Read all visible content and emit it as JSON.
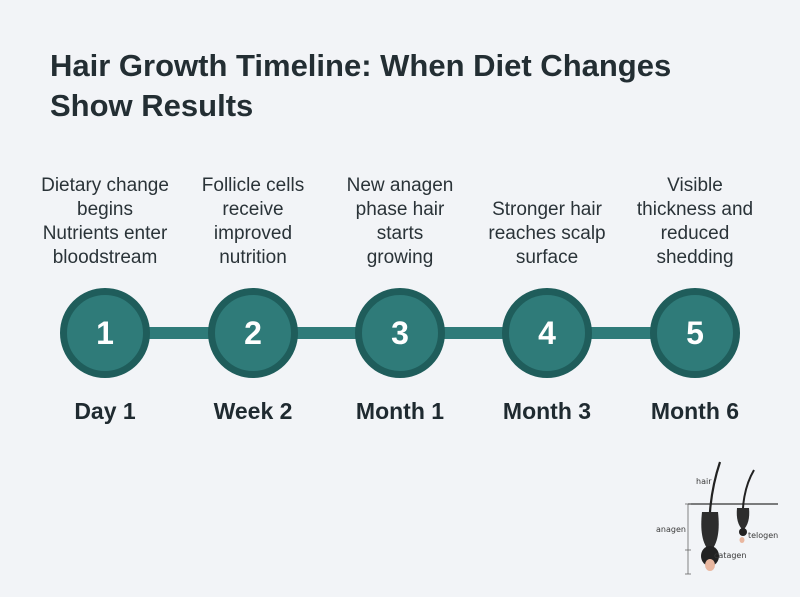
{
  "title": "Hair Growth Timeline: When Diet Changes Show Results",
  "steps": [
    {
      "number": "1",
      "label": "Day 1",
      "description": [
        "Dietary change",
        "begins",
        "Nutrients enter",
        "bloodstream"
      ]
    },
    {
      "number": "2",
      "label": "Week 2",
      "description": [
        "Follicle cells",
        "receive",
        "improved",
        "nutrition"
      ]
    },
    {
      "number": "3",
      "label": "Month 1",
      "description": [
        "New anagen",
        "phase hair",
        "starts",
        "growing"
      ]
    },
    {
      "number": "4",
      "label": "Month 3",
      "description": [
        "Stronger hair",
        "reaches scalp",
        "surface"
      ]
    },
    {
      "number": "5",
      "label": "Month 6",
      "description": [
        "Visible",
        "thickness and",
        "reduced",
        "shedding"
      ]
    }
  ],
  "diagram_labels": {
    "hair": "hair",
    "anagen": "anagen",
    "telogen": "telogen",
    "catagen": "catagen"
  },
  "colors": {
    "accent": "#2f7b79",
    "accent_dark": "#1f5d5b",
    "background": "#f2f4f7"
  }
}
